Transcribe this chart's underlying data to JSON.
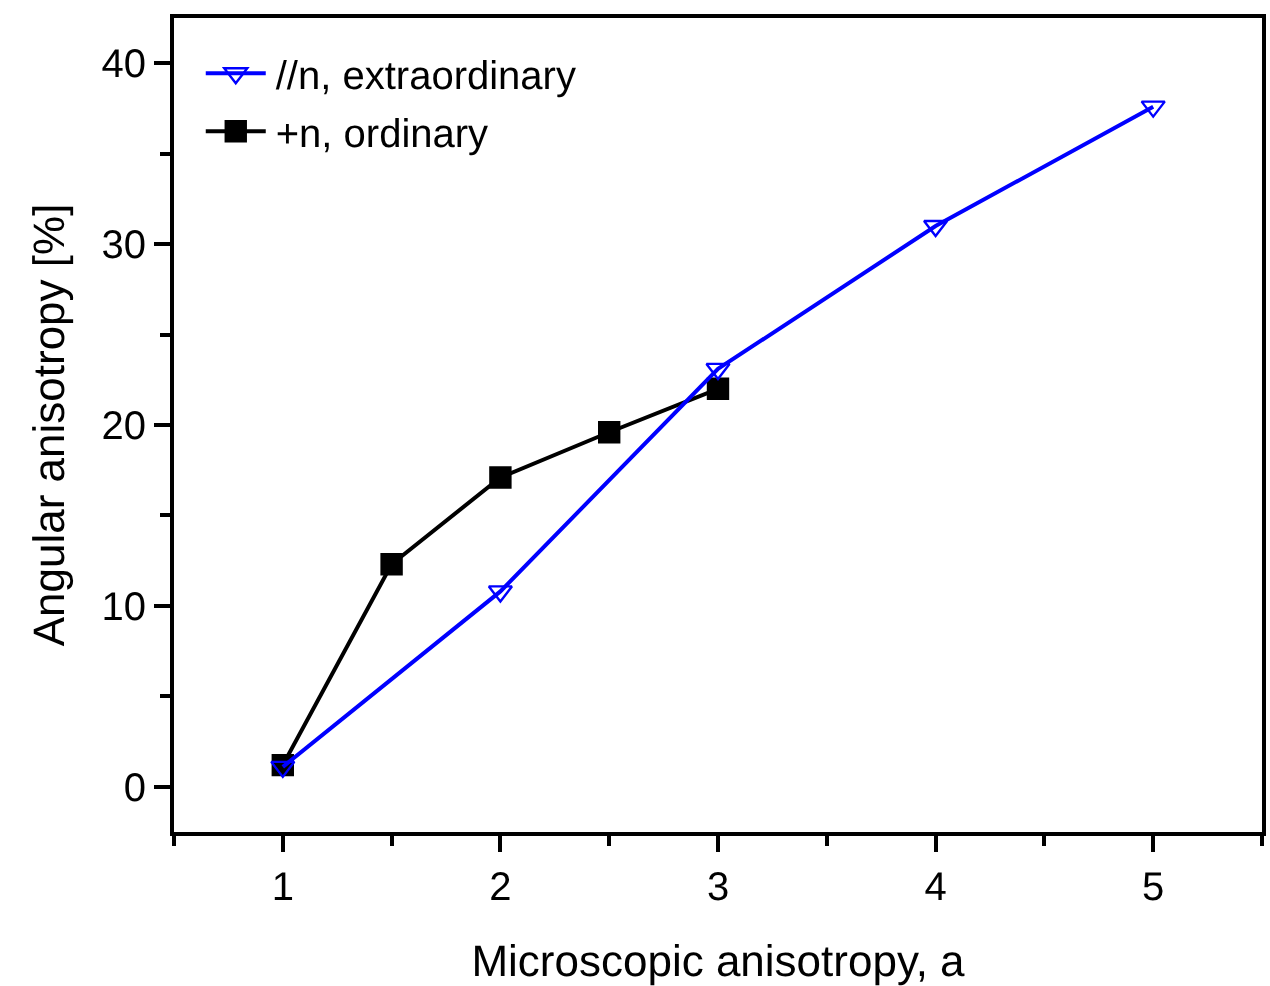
{
  "chart_data": {
    "type": "line",
    "xlabel": "Microscopic anisotropy, a",
    "ylabel": "Angular anisotropy [%]",
    "xlim": [
      0.5,
      5.5
    ],
    "xticks": [
      1,
      2,
      3,
      4,
      5
    ],
    "ylim": [
      -2.5,
      42.5
    ],
    "yticks": [
      0,
      10,
      20,
      30,
      40
    ],
    "grid": false,
    "legend": "top left",
    "series": [
      {
        "name": "//n, extraordinary",
        "color": "#0000ff",
        "marker": "triangle",
        "x": [
          1,
          2,
          3,
          4,
          5
        ],
        "values": [
          1.1,
          10.8,
          23.1,
          31.0,
          37.6
        ]
      },
      {
        "name": "+n, ordinary",
        "color": "#000000",
        "marker": "square",
        "x": [
          1,
          1.5,
          2,
          2.5,
          3
        ],
        "values": [
          1.2,
          12.3,
          17.1,
          19.6,
          22.0
        ]
      }
    ]
  }
}
